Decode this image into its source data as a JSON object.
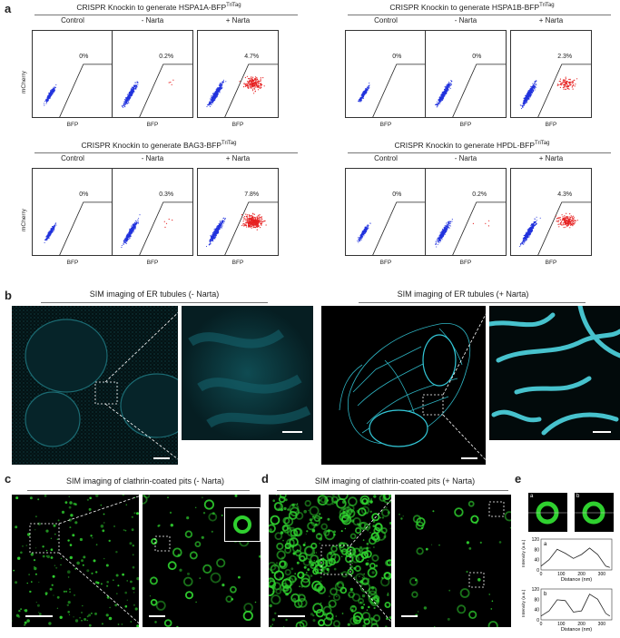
{
  "panel_labels": [
    "a",
    "b",
    "c",
    "d",
    "e"
  ],
  "flow_groups": [
    {
      "title": "CRISPR Knockin to generate HSPA1A-BFP",
      "sup": "TriTag",
      "conditions": [
        "Control",
        "- Narta",
        "+ Narta"
      ],
      "percents": [
        "0%",
        "0.2%",
        "4.7%"
      ]
    },
    {
      "title": "CRISPR Knockin to generate HSPA1B-BFP",
      "sup": "TriTag",
      "conditions": [
        "Control",
        "- Narta",
        "+ Narta"
      ],
      "percents": [
        "0%",
        "0%",
        "2.3%"
      ]
    },
    {
      "title": "CRISPR Knockin to generate BAG3-BFP",
      "sup": "TriTag",
      "conditions": [
        "Control",
        "- Narta",
        "+ Narta"
      ],
      "percents": [
        "0%",
        "0.3%",
        "7.8%"
      ]
    },
    {
      "title": "CRISPR Knockin to generate HPDL-BFP",
      "sup": "TriTag",
      "conditions": [
        "Control",
        "- Narta",
        "+ Narta"
      ],
      "percents": [
        "0%",
        "0.2%",
        "4.3%"
      ]
    }
  ],
  "axis": {
    "x": "BFP",
    "y": "mCherry"
  },
  "sim_b": {
    "left": "SIM imaging of ER tubules (- Narta)",
    "right": "SIM imaging of ER tubules (+ Narta)"
  },
  "sim_c": "SIM imaging of clathrin-coated pits (- Narta)",
  "sim_d": "SIM imaging of clathrin-coated pits (+ Narta)",
  "profile_e": {
    "inset_labels": [
      "a",
      "b"
    ],
    "ylabel": "Intensity (a.u.)",
    "xlabel": "Distance (nm)",
    "yticks": [
      "0",
      "40",
      "80",
      "120"
    ],
    "xticks": [
      "0",
      "100",
      "200",
      "300"
    ]
  },
  "colors": {
    "blue": "#2233dd",
    "red": "#e62020",
    "cyan": "#33c8d8",
    "green": "#2fd02f"
  },
  "chart_data": [
    {
      "type": "line",
      "title": "a",
      "xlabel": "Distance (nm)",
      "ylabel": "Intensity (a.u.)",
      "ylim": [
        0,
        120
      ],
      "xlim": [
        0,
        350
      ],
      "x": [
        0,
        40,
        80,
        120,
        160,
        200,
        240,
        280,
        320,
        340
      ],
      "y": [
        15,
        40,
        80,
        65,
        45,
        60,
        85,
        60,
        15,
        10
      ]
    },
    {
      "type": "line",
      "title": "b",
      "xlabel": "Distance (nm)",
      "ylabel": "Intensity (a.u.)",
      "ylim": [
        0,
        120
      ],
      "xlim": [
        0,
        350
      ],
      "x": [
        0,
        40,
        80,
        120,
        160,
        200,
        240,
        280,
        320,
        340
      ],
      "y": [
        15,
        35,
        78,
        75,
        30,
        35,
        100,
        80,
        25,
        15
      ]
    }
  ]
}
